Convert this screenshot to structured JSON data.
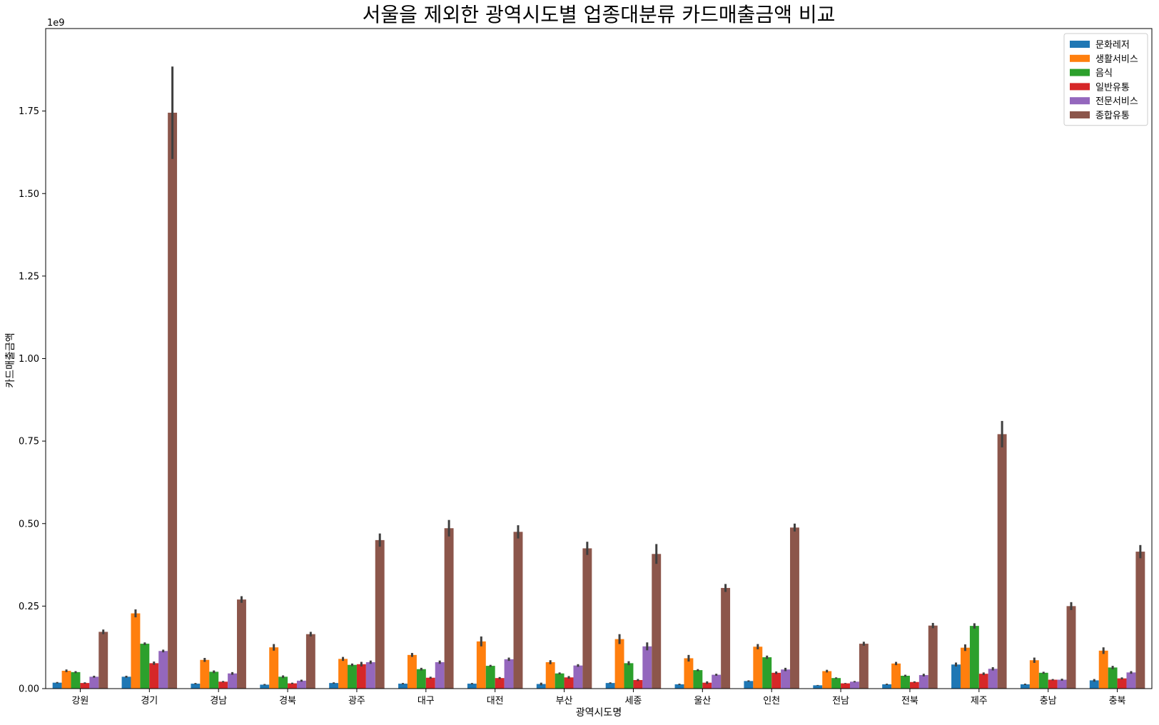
{
  "chart_data": {
    "type": "bar",
    "title": "서울을 제외한 광역시도별 업종대분류 카드매출금액 비교",
    "xlabel": "광역시도명",
    "ylabel": "카드매출금액",
    "y_multiplier_label": "1e9",
    "ylim": [
      0,
      2.0
    ],
    "yticks": [
      0.0,
      0.25,
      0.5,
      0.75,
      1.0,
      1.25,
      1.5,
      1.75
    ],
    "ytick_labels": [
      "0.00",
      "0.25",
      "0.50",
      "0.75",
      "1.00",
      "1.25",
      "1.50",
      "1.75"
    ],
    "legend_position": "top-right",
    "grid": false,
    "categories": [
      "강원",
      "경기",
      "경남",
      "경북",
      "광주",
      "대구",
      "대전",
      "부산",
      "세종",
      "울산",
      "인천",
      "전남",
      "전북",
      "제주",
      "충남",
      "충북"
    ],
    "series": [
      {
        "name": "문화레저",
        "color": "#1f77b4",
        "values": [
          0.018,
          0.036,
          0.015,
          0.012,
          0.017,
          0.015,
          0.015,
          0.014,
          0.017,
          0.013,
          0.023,
          0.01,
          0.013,
          0.073,
          0.013,
          0.025
        ],
        "errors": [
          0.002,
          0.003,
          0.002,
          0.002,
          0.002,
          0.002,
          0.002,
          0.004,
          0.002,
          0.002,
          0.002,
          0.001,
          0.002,
          0.006,
          0.002,
          0.004
        ]
      },
      {
        "name": "생활서비스",
        "color": "#ff7f0e",
        "values": [
          0.054,
          0.228,
          0.087,
          0.125,
          0.09,
          0.102,
          0.143,
          0.08,
          0.15,
          0.092,
          0.127,
          0.053,
          0.076,
          0.124,
          0.086,
          0.115
        ],
        "errors": [
          0.004,
          0.012,
          0.006,
          0.01,
          0.006,
          0.006,
          0.015,
          0.006,
          0.015,
          0.01,
          0.008,
          0.004,
          0.005,
          0.01,
          0.008,
          0.01
        ]
      },
      {
        "name": "음식",
        "color": "#2ca02c",
        "values": [
          0.05,
          0.136,
          0.051,
          0.036,
          0.072,
          0.059,
          0.069,
          0.046,
          0.077,
          0.056,
          0.095,
          0.032,
          0.039,
          0.19,
          0.048,
          0.064
        ],
        "errors": [
          0.003,
          0.004,
          0.004,
          0.004,
          0.004,
          0.004,
          0.003,
          0.003,
          0.006,
          0.003,
          0.005,
          0.002,
          0.003,
          0.008,
          0.003,
          0.005
        ]
      },
      {
        "name": "일반유통",
        "color": "#d62728",
        "values": [
          0.017,
          0.077,
          0.021,
          0.016,
          0.074,
          0.033,
          0.032,
          0.034,
          0.026,
          0.018,
          0.048,
          0.016,
          0.02,
          0.045,
          0.027,
          0.031
        ],
        "errors": [
          0.002,
          0.005,
          0.002,
          0.002,
          0.007,
          0.003,
          0.003,
          0.004,
          0.003,
          0.004,
          0.004,
          0.001,
          0.002,
          0.004,
          0.002,
          0.003
        ]
      },
      {
        "name": "전문서비스",
        "color": "#9467bd",
        "values": [
          0.036,
          0.114,
          0.046,
          0.024,
          0.08,
          0.08,
          0.089,
          0.07,
          0.128,
          0.042,
          0.058,
          0.021,
          0.041,
          0.06,
          0.027,
          0.049
        ],
        "errors": [
          0.003,
          0.004,
          0.004,
          0.003,
          0.005,
          0.005,
          0.005,
          0.004,
          0.012,
          0.003,
          0.005,
          0.002,
          0.004,
          0.005,
          0.003,
          0.004
        ]
      },
      {
        "name": "종합유통",
        "color": "#8c564b",
        "values": [
          0.172,
          1.745,
          0.27,
          0.165,
          0.45,
          0.486,
          0.475,
          0.425,
          0.408,
          0.305,
          0.488,
          0.136,
          0.191,
          0.771,
          0.25,
          0.415
        ],
        "errors": [
          0.007,
          0.14,
          0.01,
          0.007,
          0.02,
          0.025,
          0.02,
          0.02,
          0.03,
          0.012,
          0.012,
          0.006,
          0.008,
          0.04,
          0.012,
          0.02
        ]
      }
    ]
  }
}
